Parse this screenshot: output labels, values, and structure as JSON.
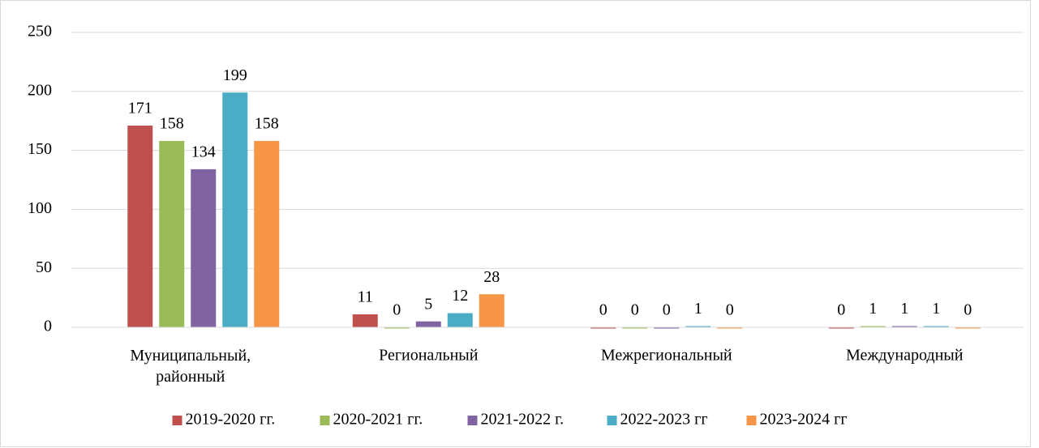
{
  "chart_data": {
    "type": "bar",
    "categories": [
      "Муниципальный, районный",
      "Региональный",
      "Межрегиональный",
      "Международный"
    ],
    "series": [
      {
        "name": "2019-2020 гг.",
        "color": "#c0504d",
        "values": [
          171,
          11,
          0,
          0
        ]
      },
      {
        "name": "2020-2021 гг.",
        "color": "#9bbb59",
        "values": [
          158,
          0,
          0,
          1
        ]
      },
      {
        "name": "2021-2022 г.",
        "color": "#8064a2",
        "values": [
          134,
          5,
          0,
          1
        ]
      },
      {
        "name": "2022-2023 гг",
        "color": "#4bacc6",
        "values": [
          199,
          12,
          1,
          1
        ]
      },
      {
        "name": "2023-2024 гг",
        "color": "#f79646",
        "values": [
          158,
          28,
          0,
          0
        ]
      }
    ],
    "ylim": [
      0,
      250
    ],
    "yticks": [
      0,
      50,
      100,
      150,
      200,
      250
    ],
    "grid": true,
    "legend": "bottom"
  }
}
